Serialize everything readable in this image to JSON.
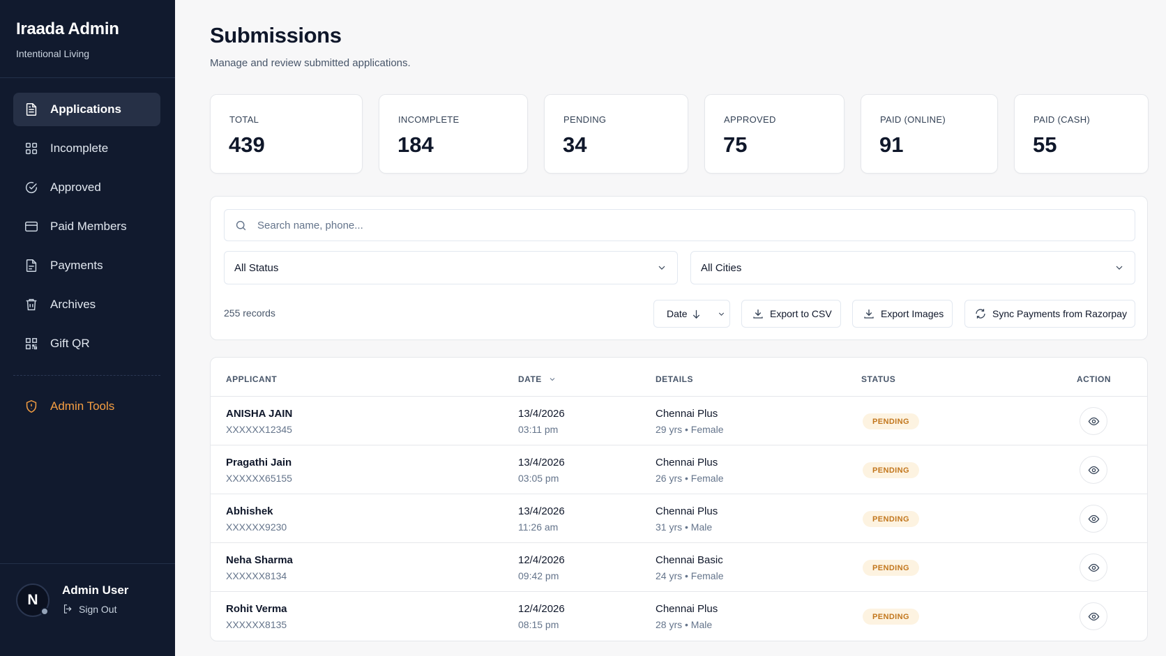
{
  "sidebar": {
    "brand_title": "Iraada Admin",
    "brand_subtitle": "Intentional Living",
    "items": [
      {
        "label": "Applications",
        "icon": "file-text-icon",
        "active": true
      },
      {
        "label": "Incomplete",
        "icon": "grid-icon"
      },
      {
        "label": "Approved",
        "icon": "check-circle-icon"
      },
      {
        "label": "Paid Members",
        "icon": "credit-card-icon"
      },
      {
        "label": "Payments",
        "icon": "file-icon"
      },
      {
        "label": "Archives",
        "icon": "archive-icon"
      },
      {
        "label": "Gift QR",
        "icon": "qr-code-icon"
      }
    ],
    "admin_tools": {
      "label": "Admin Tools",
      "icon": "shield-icon",
      "color": "#f59e42"
    },
    "user": {
      "initial": "N",
      "name": "Admin User",
      "signout": "Sign Out"
    }
  },
  "header": {
    "title": "Submissions",
    "subtitle": "Manage and review submitted applications."
  },
  "stats": [
    {
      "label": "TOTAL",
      "value": "439"
    },
    {
      "label": "INCOMPLETE",
      "value": "184"
    },
    {
      "label": "PENDING",
      "value": "34"
    },
    {
      "label": "APPROVED",
      "value": "75"
    },
    {
      "label": "PAID (ONLINE)",
      "value": "91"
    },
    {
      "label": "PAID (CASH)",
      "value": "55"
    }
  ],
  "filters": {
    "search_placeholder": "Search name, phone...",
    "status_select": "All Status",
    "city_select": "All Cities",
    "records": "255 records",
    "sort_label": "Date",
    "export_csv": "Export to CSV",
    "export_images": "Export Images",
    "sync": "Sync Payments from Razorpay"
  },
  "table": {
    "headers": {
      "applicant": "APPLICANT",
      "date": "DATE",
      "details": "DETAILS",
      "status": "STATUS",
      "action": "ACTION"
    },
    "rows": [
      {
        "name": "ANISHA JAIN",
        "phone": "XXXXXX12345",
        "date": "13/4/2026",
        "time": "03:11 pm",
        "plan": "Chennai Plus",
        "info": "29 yrs • Female",
        "status": "PENDING"
      },
      {
        "name": "Pragathi Jain",
        "phone": "XXXXXX65155",
        "date": "13/4/2026",
        "time": "03:05 pm",
        "plan": "Chennai Plus",
        "info": "26 yrs • Female",
        "status": "PENDING"
      },
      {
        "name": "Abhishek",
        "phone": "XXXXXX9230",
        "date": "13/4/2026",
        "time": "11:26 am",
        "plan": "Chennai Plus",
        "info": "31 yrs • Male",
        "status": "PENDING"
      },
      {
        "name": "Neha Sharma",
        "phone": "XXXXXX8134",
        "date": "12/4/2026",
        "time": "09:42 pm",
        "plan": "Chennai Basic",
        "info": "24 yrs • Female",
        "status": "PENDING"
      },
      {
        "name": "Rohit Verma",
        "phone": "XXXXXX8135",
        "date": "12/4/2026",
        "time": "08:15 pm",
        "plan": "Chennai Plus",
        "info": "28 yrs • Male",
        "status": "PENDING"
      }
    ]
  }
}
